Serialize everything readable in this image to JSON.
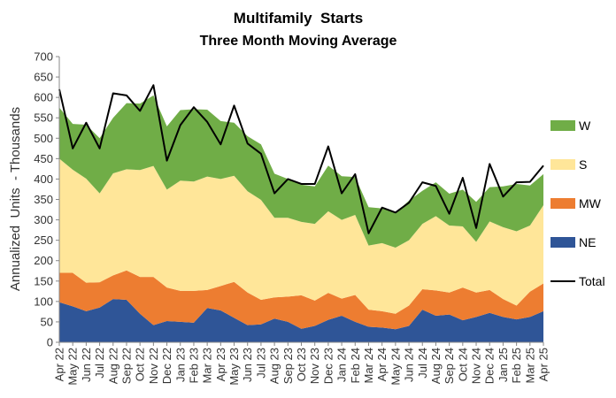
{
  "chart_data": {
    "type": "area",
    "title": "Multifamily  Starts",
    "subtitle": "Three Month Moving Average",
    "ylabel": "Annualized  Units  - Thousands",
    "xlabel": "",
    "ylim": [
      0,
      700
    ],
    "yticks": [
      0,
      50,
      100,
      150,
      200,
      250,
      300,
      350,
      400,
      450,
      500,
      550,
      600,
      650,
      700
    ],
    "grid": false,
    "legend_position": "right",
    "x": [
      "Apr 22",
      "May 22",
      "Jun 22",
      "Jul 22",
      "Aug 22",
      "Sep 22",
      "Oct 22",
      "Nov 22",
      "Dec 22",
      "Jan 23",
      "Feb 23",
      "Mar 23",
      "Apr 23",
      "May 23",
      "Jun 23",
      "Jul 23",
      "Aug 23",
      "Sep 23",
      "Oct 23",
      "Nov 23",
      "Dec 23",
      "Jan 24",
      "Feb 24",
      "Mar 24",
      "Apr 24",
      "May 24",
      "Jun 24",
      "Jul 24",
      "Aug 24",
      "Sep 24",
      "Oct 24",
      "Nov 24",
      "Dec 24",
      "Jan 25",
      "Feb 25",
      "Mar 25",
      "Apr 25"
    ],
    "x_tick_labels": [
      "Apr 22",
      "May 22",
      "Jun 22",
      "Jul 22",
      "Aug 22",
      "Sep 22",
      "Oct 22",
      "Nov 22",
      "Dec 22",
      "Jan 23",
      "Feb 23",
      "Mar 23",
      "Apr 23",
      "May 23",
      "Jun 23",
      "Jul 23",
      "Aug 23",
      "Sep 23",
      "Oct 23",
      "Nov 23",
      "Dec 23",
      "Jan 24",
      "Feb 24",
      "Mar 24",
      "Apr 24",
      "May 24",
      "Jun 24",
      "Jul 24",
      "Aug 24",
      "Sep 24",
      "Oct 24",
      "Nov 24",
      "Dec 24",
      "Jan 25",
      "Feb 25",
      "Mar 25",
      "Apr 25"
    ],
    "stacked_series": [
      {
        "name": "NE",
        "color": "#2F5597",
        "values": [
          98,
          88,
          76,
          85,
          106,
          104,
          70,
          42,
          52,
          50,
          48,
          84,
          78,
          60,
          42,
          44,
          58,
          50,
          33,
          40,
          55,
          65,
          50,
          38,
          36,
          32,
          40,
          80,
          65,
          68,
          54,
          62,
          72,
          62,
          56,
          62,
          76
        ]
      },
      {
        "name": "MW",
        "color": "#ED7D31",
        "values": [
          72,
          82,
          70,
          62,
          58,
          72,
          90,
          118,
          82,
          76,
          78,
          44,
          60,
          88,
          80,
          60,
          52,
          62,
          82,
          62,
          66,
          42,
          66,
          42,
          40,
          38,
          50,
          50,
          62,
          54,
          80,
          60,
          56,
          44,
          34,
          62,
          68
        ]
      },
      {
        "name": "S",
        "color": "#FFE699",
        "values": [
          280,
          253,
          255,
          218,
          250,
          248,
          262,
          272,
          240,
          270,
          268,
          278,
          262,
          260,
          248,
          245,
          195,
          193,
          180,
          188,
          200,
          193,
          196,
          157,
          167,
          162,
          160,
          160,
          182,
          164,
          150,
          124,
          168,
          176,
          182,
          162,
          192
        ]
      },
      {
        "name": "W",
        "color": "#70AD47",
        "values": [
          125,
          112,
          132,
          135,
          136,
          162,
          163,
          173,
          155,
          173,
          177,
          164,
          142,
          130,
          135,
          136,
          108,
          95,
          91,
          92,
          112,
          107,
          93,
          94,
          85,
          85,
          97,
          81,
          83,
          78,
          90,
          98,
          84,
          100,
          116,
          98,
          76
        ]
      }
    ],
    "total": {
      "name": "Total",
      "color": "#000000",
      "values": [
        620,
        475,
        538,
        475,
        610,
        605,
        567,
        630,
        445,
        532,
        576,
        540,
        485,
        580,
        487,
        462,
        365,
        400,
        388,
        388,
        480,
        365,
        412,
        267,
        330,
        318,
        342,
        392,
        383,
        315,
        403,
        280,
        437,
        357,
        392,
        393,
        433
      ]
    },
    "legend": [
      {
        "name": "W",
        "color": "#70AD47",
        "kind": "area"
      },
      {
        "name": "S",
        "color": "#FFE699",
        "kind": "area"
      },
      {
        "name": "MW",
        "color": "#ED7D31",
        "kind": "area"
      },
      {
        "name": "NE",
        "color": "#2F5597",
        "kind": "area"
      },
      {
        "name": "Total",
        "color": "#000000",
        "kind": "line"
      }
    ]
  }
}
